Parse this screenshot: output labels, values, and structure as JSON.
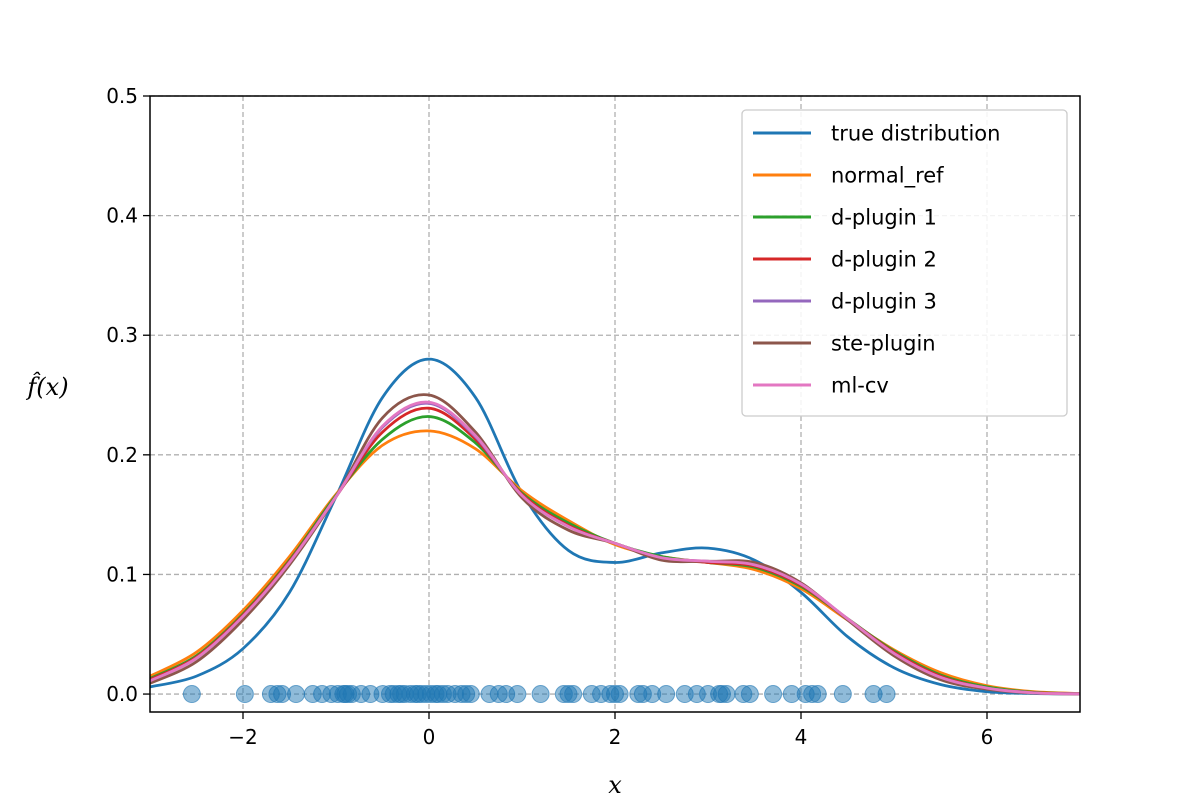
{
  "chart_data": {
    "type": "line",
    "xlabel": "x",
    "ylabel": "f̂(x)",
    "xlim": [
      -3,
      7
    ],
    "ylim": [
      -0.015,
      0.5
    ],
    "xticks": [
      -2,
      0,
      2,
      4,
      6
    ],
    "yticks": [
      0.0,
      0.1,
      0.2,
      0.3,
      0.4,
      0.5
    ],
    "xtick_labels": [
      "−2",
      "0",
      "2",
      "4",
      "6"
    ],
    "ytick_labels": [
      "0.0",
      "0.1",
      "0.2",
      "0.3",
      "0.4",
      "0.5"
    ],
    "grid": true,
    "legend_position": "top-right",
    "x": [
      -3.0,
      -2.5,
      -2.0,
      -1.5,
      -1.0,
      -0.5,
      0.0,
      0.5,
      1.0,
      1.5,
      2.0,
      2.5,
      3.0,
      3.5,
      4.0,
      4.5,
      5.0,
      5.5,
      6.0,
      6.5,
      7.0
    ],
    "series": [
      {
        "name": "true distribution",
        "color": "#1f77b4",
        "values": [
          0.006,
          0.015,
          0.038,
          0.085,
          0.165,
          0.248,
          0.28,
          0.248,
          0.168,
          0.12,
          0.11,
          0.118,
          0.122,
          0.112,
          0.085,
          0.048,
          0.022,
          0.008,
          0.002,
          0.0005,
          0.0001
        ]
      },
      {
        "name": "normal_ref",
        "color": "#ff7f0e",
        "values": [
          0.015,
          0.035,
          0.07,
          0.115,
          0.167,
          0.208,
          0.22,
          0.205,
          0.17,
          0.145,
          0.125,
          0.115,
          0.11,
          0.104,
          0.088,
          0.062,
          0.037,
          0.018,
          0.007,
          0.002,
          0.0005
        ]
      },
      {
        "name": "d-plugin 1",
        "color": "#2ca02c",
        "values": [
          0.013,
          0.032,
          0.067,
          0.112,
          0.166,
          0.213,
          0.232,
          0.21,
          0.168,
          0.143,
          0.126,
          0.115,
          0.11,
          0.106,
          0.09,
          0.063,
          0.036,
          0.016,
          0.006,
          0.0015,
          0.0003
        ]
      },
      {
        "name": "d-plugin 2",
        "color": "#d62728",
        "values": [
          0.012,
          0.031,
          0.066,
          0.111,
          0.165,
          0.219,
          0.239,
          0.213,
          0.167,
          0.141,
          0.126,
          0.114,
          0.11,
          0.107,
          0.091,
          0.063,
          0.035,
          0.015,
          0.005,
          0.0012,
          0.0002
        ]
      },
      {
        "name": "d-plugin 3",
        "color": "#9467bd",
        "values": [
          0.011,
          0.03,
          0.065,
          0.11,
          0.165,
          0.223,
          0.243,
          0.215,
          0.166,
          0.14,
          0.126,
          0.114,
          0.111,
          0.108,
          0.092,
          0.063,
          0.034,
          0.014,
          0.005,
          0.001,
          0.0002
        ]
      },
      {
        "name": "ste-plugin",
        "color": "#8c564b",
        "values": [
          0.009,
          0.027,
          0.062,
          0.108,
          0.165,
          0.231,
          0.25,
          0.219,
          0.164,
          0.137,
          0.126,
          0.112,
          0.111,
          0.11,
          0.093,
          0.062,
          0.032,
          0.012,
          0.004,
          0.0008,
          0.0001
        ]
      },
      {
        "name": "ml-cv",
        "color": "#e377c2",
        "values": [
          0.011,
          0.03,
          0.065,
          0.11,
          0.165,
          0.224,
          0.244,
          0.216,
          0.166,
          0.14,
          0.126,
          0.114,
          0.111,
          0.108,
          0.092,
          0.063,
          0.034,
          0.014,
          0.005,
          0.001,
          0.0002
        ]
      }
    ],
    "samples": {
      "color": "#1f77b4",
      "y": 0.0,
      "x": [
        -2.55,
        -1.98,
        -1.7,
        -1.63,
        -1.58,
        -1.43,
        -1.25,
        -1.15,
        -1.05,
        -0.98,
        -0.92,
        -0.9,
        -0.87,
        -0.83,
        -0.73,
        -0.63,
        -0.5,
        -0.42,
        -0.38,
        -0.33,
        -0.3,
        -0.26,
        -0.2,
        -0.15,
        -0.12,
        -0.08,
        -0.03,
        0.02,
        0.07,
        0.1,
        0.15,
        0.2,
        0.28,
        0.35,
        0.4,
        0.45,
        0.65,
        0.75,
        0.83,
        0.95,
        1.2,
        1.45,
        1.5,
        1.55,
        1.75,
        1.85,
        1.95,
        2.0,
        2.05,
        2.25,
        2.3,
        2.4,
        2.55,
        2.75,
        2.88,
        3.0,
        3.12,
        3.15,
        3.2,
        3.38,
        3.45,
        3.7,
        3.9,
        4.05,
        4.12,
        4.18,
        4.45,
        4.78,
        4.92
      ]
    }
  }
}
